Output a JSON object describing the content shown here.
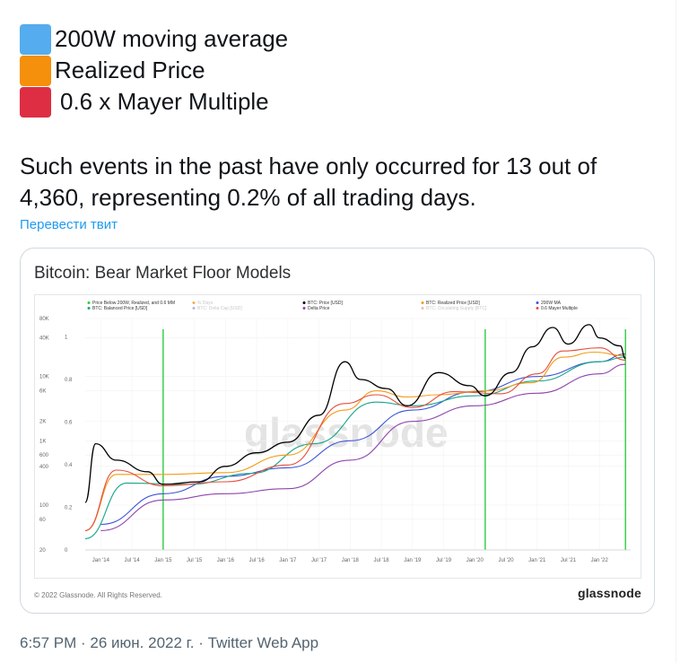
{
  "tweet": {
    "legend": [
      {
        "label": "200W moving average",
        "color": "#55acee",
        "icon": "blue-square-icon"
      },
      {
        "label": "Realized Price",
        "color": "#f4900c",
        "icon": "orange-square-icon"
      },
      {
        "label": "0.6 x Mayer Multiple",
        "color": "#dd2e44",
        "icon": "red-square-icon"
      }
    ],
    "text": "Such events in the past have only occurred for 13 out of 4,360, representing 0.2% of all trading days.",
    "translate_label": "Перевести твит",
    "timestamp": "6:57 PM · 26 июн. 2022 г. · Twitter Web App"
  },
  "card": {
    "title": "Bitcoin: Bear Market Floor Models",
    "footer_left": "© 2022 Glassnode. All Rights Reserved.",
    "footer_right": "glassnode",
    "watermark": "glassnode"
  },
  "chart_data": {
    "type": "line",
    "title": "Bitcoin: Bear Market Floor Models",
    "y_scale": "log",
    "ylim": [
      20,
      80000
    ],
    "y_ticks": [
      "80K",
      "40K",
      "10K",
      "6K",
      "2K",
      "1K",
      "600",
      "400",
      "100",
      "60",
      "20"
    ],
    "y2_ticks": [
      "1",
      "0.8",
      "0.6",
      "0.4",
      "0.2",
      "0"
    ],
    "x_ticks": [
      "Jan '14",
      "Jul '14",
      "Jan '15",
      "Jul '15",
      "Jan '16",
      "Jul '16",
      "Jan '17",
      "Jul '17",
      "Jan '18",
      "Jul '18",
      "Jan '19",
      "Jul '19",
      "Jan '20",
      "Jul '20",
      "Jan '21",
      "Jul '21",
      "Jan '22"
    ],
    "legend": [
      {
        "name": "Price Below 200W, Realized, and 0.6 MM",
        "color": "#2ecc40"
      },
      {
        "name": "% Days",
        "color": "#f5b041",
        "dimmed": true
      },
      {
        "name": "BTC: Price [USD]",
        "color": "#000000"
      },
      {
        "name": "BTC: Realized Price [USD]",
        "color": "#f39c12"
      },
      {
        "name": "200W MA",
        "color": "#3b55d9"
      },
      {
        "name": "BTC: Balanced Price [USD]",
        "color": "#17a589"
      },
      {
        "name": "BTC: Delta Cap [USD]",
        "color": "#aab7f0",
        "dimmed": true
      },
      {
        "name": "Delta Price",
        "color": "#8e44ad"
      },
      {
        "name": "BTC: Circulating Supply [BTC]",
        "color": "#f5b7b1",
        "dimmed": true
      },
      {
        "name": "0.6 Mayer Multiple",
        "color": "#e74c3c"
      }
    ],
    "events": [
      "Jan '15",
      "Mar '20",
      "Jun '22"
    ],
    "series": [
      {
        "name": "BTC: Price [USD]",
        "color": "#000000",
        "x": [
          "2013-10",
          "2013-12",
          "2014-04",
          "2014-10",
          "2015-01",
          "2015-08",
          "2016-01",
          "2016-07",
          "2017-01",
          "2017-07",
          "2017-12",
          "2018-03",
          "2018-08",
          "2018-12",
          "2019-06",
          "2019-12",
          "2020-03",
          "2020-08",
          "2020-12",
          "2021-04",
          "2021-07",
          "2021-11",
          "2022-01",
          "2022-05",
          "2022-06"
        ],
        "values": [
          110,
          900,
          500,
          330,
          210,
          230,
          400,
          650,
          950,
          2500,
          17000,
          9000,
          6500,
          3500,
          11500,
          7200,
          5000,
          11500,
          29000,
          58000,
          32000,
          64000,
          40000,
          30000,
          19000
        ]
      },
      {
        "name": "BTC: Realized Price [USD]",
        "color": "#f39c12",
        "x": [
          "2013-10",
          "2014-04",
          "2015-01",
          "2016-01",
          "2017-01",
          "2017-12",
          "2018-06",
          "2018-12",
          "2019-06",
          "2020-03",
          "2020-12",
          "2021-06",
          "2021-12",
          "2022-06"
        ],
        "values": [
          40,
          300,
          300,
          320,
          600,
          3000,
          6000,
          4800,
          5200,
          6000,
          8000,
          20000,
          24000,
          21000
        ]
      },
      {
        "name": "200W MA",
        "color": "#3b55d9",
        "x": [
          "2014-01",
          "2015-01",
          "2016-01",
          "2017-01",
          "2018-01",
          "2019-01",
          "2020-01",
          "2021-01",
          "2022-01",
          "2022-06"
        ],
        "values": [
          50,
          150,
          280,
          380,
          1000,
          3000,
          5800,
          10000,
          17000,
          22500
        ]
      },
      {
        "name": "BTC: Balanced Price [USD]",
        "color": "#17a589",
        "x": [
          "2013-10",
          "2014-06",
          "2015-06",
          "2016-06",
          "2017-06",
          "2018-06",
          "2019-01",
          "2020-01",
          "2021-01",
          "2022-01",
          "2022-06"
        ],
        "values": [
          30,
          220,
          210,
          310,
          900,
          4000,
          3500,
          5000,
          8500,
          17000,
          20000
        ]
      },
      {
        "name": "Delta Price",
        "color": "#8e44ad",
        "x": [
          "2014-01",
          "2015-01",
          "2016-01",
          "2017-01",
          "2018-01",
          "2019-01",
          "2020-01",
          "2021-01",
          "2022-01",
          "2022-06"
        ],
        "values": [
          40,
          120,
          150,
          180,
          500,
          2000,
          3500,
          5500,
          11000,
          15500
        ]
      },
      {
        "name": "0.6 Mayer Multiple",
        "color": "#e74c3c",
        "x": [
          "2013-10",
          "2014-04",
          "2015-01",
          "2016-01",
          "2017-01",
          "2017-12",
          "2018-06",
          "2019-01",
          "2019-09",
          "2020-06",
          "2021-01",
          "2021-06",
          "2022-01",
          "2022-06"
        ],
        "values": [
          40,
          350,
          200,
          230,
          420,
          3800,
          5200,
          3300,
          5800,
          5400,
          11000,
          25000,
          28000,
          18000
        ]
      }
    ]
  }
}
